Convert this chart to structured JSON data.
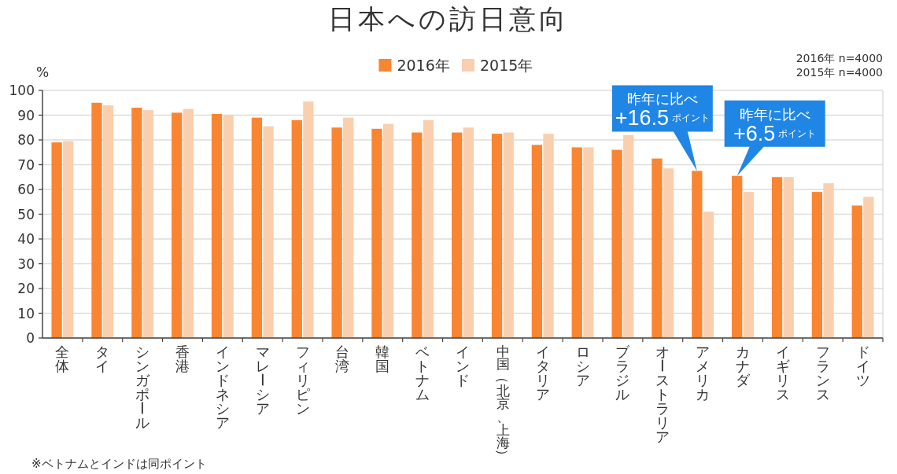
{
  "chart_data": {
    "type": "bar",
    "title": "日本への訪日意向",
    "ylabel": "%",
    "categories": [
      "全体",
      "タイ",
      "シンガポール",
      "香港",
      "インドネシア",
      "マレーシア",
      "フィリピン",
      "台湾",
      "韓国",
      "ベトナム",
      "インド",
      "中国（北京、上海）",
      "イタリア",
      "ロシア",
      "ブラジル",
      "オーストラリア",
      "アメリカ",
      "カナダ",
      "イギリス",
      "フランス",
      "ドイツ"
    ],
    "series": [
      {
        "name": "2016年",
        "color": "#f98532",
        "values": [
          79,
          95,
          93,
          91,
          90.5,
          89,
          88,
          85,
          84.5,
          83,
          83,
          82.5,
          78,
          77,
          76,
          72.5,
          67.5,
          65.5,
          65,
          59,
          53.5
        ]
      },
      {
        "name": "2015年",
        "color": "#f9cfae",
        "values": [
          79.5,
          94,
          92,
          92.5,
          90,
          85.5,
          95.5,
          89,
          86.5,
          88,
          85,
          83,
          82.5,
          77,
          82,
          68.5,
          51,
          59,
          65,
          62.5,
          57
        ]
      }
    ],
    "ylim": [
      0,
      100
    ],
    "yticks": [
      0,
      10,
      20,
      30,
      40,
      50,
      60,
      70,
      80,
      90,
      100
    ],
    "grid": "y",
    "legend": "top",
    "annotations": [
      "2016年 n=4000\n2015年 n=4000",
      "※ベトナムとインドは同ポイント",
      {
        "text": "昨年に比べ\n+16.5ポイント",
        "x": "アメリカ",
        "y": 67.5
      },
      {
        "text": "昨年に比べ\n+6.5ポイント",
        "x": "カナダ",
        "y": 65.5
      }
    ]
  }
}
